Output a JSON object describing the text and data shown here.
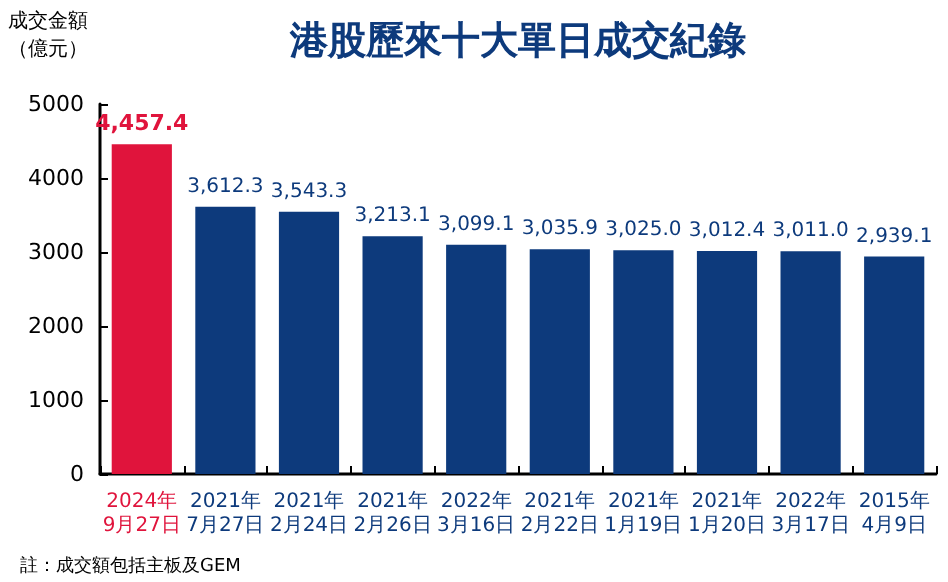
{
  "chart_data": {
    "type": "bar",
    "title": "港股歷來十大單日成交紀錄",
    "ylabel": "成交金額（億元）",
    "categories": [
      "2024年\n9月27日",
      "2021年\n7月27日",
      "2021年\n2月24日",
      "2021年\n2月26日",
      "2022年\n3月16日",
      "2021年\n2月22日",
      "2021年\n1月19日",
      "2021年\n1月20日",
      "2022年\n3月17日",
      "2015年\n4月9日"
    ],
    "values": [
      4457.4,
      3612.3,
      3543.3,
      3213.1,
      3099.1,
      3035.9,
      3025.0,
      3012.4,
      3011.0,
      2939.1
    ],
    "colors": [
      "#e0143c",
      "#0d3a7c",
      "#0d3a7c",
      "#0d3a7c",
      "#0d3a7c",
      "#0d3a7c",
      "#0d3a7c",
      "#0d3a7c",
      "#0d3a7c",
      "#0d3a7c"
    ],
    "value_labels": [
      "4,457.4",
      "3,612.3",
      "3,543.3",
      "3,213.1",
      "3,099.1",
      "3,035.9",
      "3,025.0",
      "3,012.4",
      "3,011.0",
      "2,939.1"
    ],
    "ylim": [
      0,
      5000
    ],
    "yticks": [
      0,
      1000,
      2000,
      3000,
      4000,
      5000
    ],
    "grid": false,
    "annotations": [
      "註：成交額包括主板及GEM"
    ]
  }
}
